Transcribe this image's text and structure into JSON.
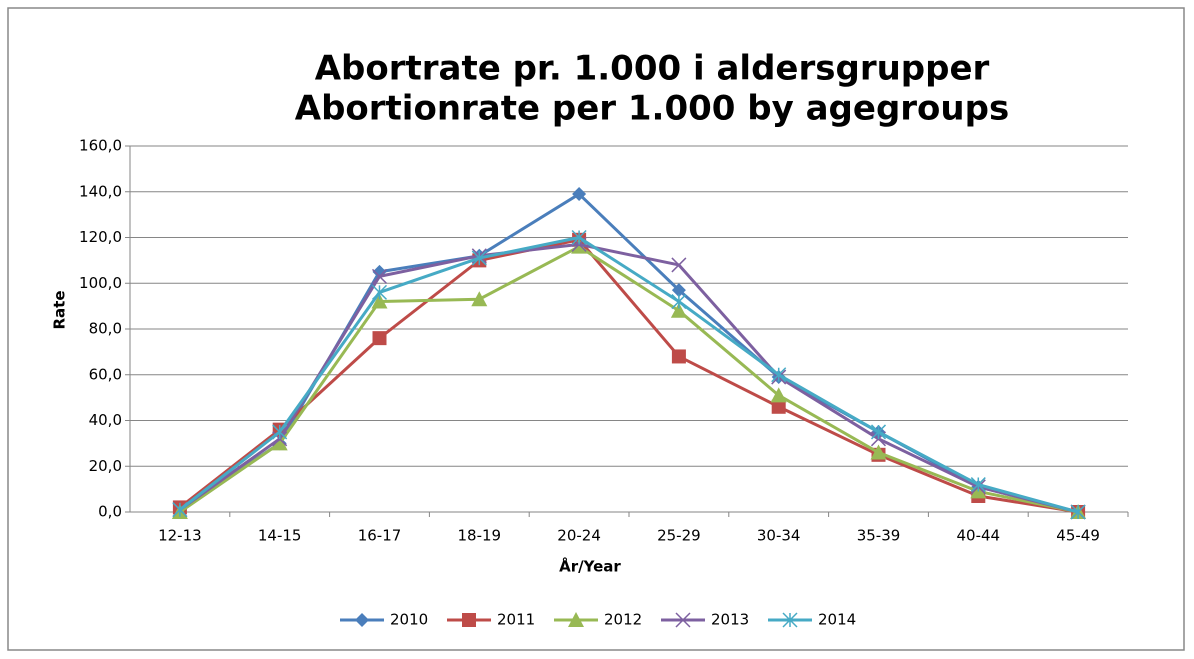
{
  "chart_data": {
    "type": "line",
    "title": [
      "Abortrate pr. 1.000 i aldersgrupper",
      "Abortionrate per 1.000 by agegroups"
    ],
    "x_label": "År/Year",
    "y_label": "Rate",
    "categories": [
      "12-13",
      "14-15",
      "16-17",
      "18-19",
      "20-24",
      "25-29",
      "30-34",
      "35-39",
      "40-44",
      "45-49"
    ],
    "series": [
      {
        "name": "2010",
        "color": "#4a7ebb",
        "marker": "diamond",
        "values": [
          1,
          30,
          105,
          112,
          139,
          97,
          59,
          35,
          11,
          0
        ]
      },
      {
        "name": "2011",
        "color": "#be4b48",
        "marker": "square",
        "values": [
          2,
          36,
          76,
          110,
          119,
          68,
          46,
          25,
          7,
          0
        ]
      },
      {
        "name": "2012",
        "color": "#98b954",
        "marker": "triangle",
        "values": [
          0,
          30,
          92,
          93,
          116,
          88,
          51,
          26,
          9,
          0
        ]
      },
      {
        "name": "2013",
        "color": "#7d60a0",
        "marker": "x",
        "values": [
          1,
          32,
          103,
          112,
          117,
          108,
          59,
          32,
          11,
          0
        ]
      },
      {
        "name": "2014",
        "color": "#46aac5",
        "marker": "star",
        "values": [
          1,
          35,
          96,
          111,
          120,
          92,
          60,
          35,
          12,
          0
        ]
      }
    ],
    "ylim": [
      0,
      160
    ],
    "yticks": [
      {
        "value": 0,
        "label": "0,0"
      },
      {
        "value": 20,
        "label": "20,0"
      },
      {
        "value": 40,
        "label": "40,0"
      },
      {
        "value": 60,
        "label": "60,0"
      },
      {
        "value": 80,
        "label": "80,0"
      },
      {
        "value": 100,
        "label": "100,0"
      },
      {
        "value": 120,
        "label": "120,0"
      },
      {
        "value": 140,
        "label": "140,0"
      },
      {
        "value": 160,
        "label": "160,0"
      }
    ],
    "grid": true,
    "legend": "bottom"
  }
}
